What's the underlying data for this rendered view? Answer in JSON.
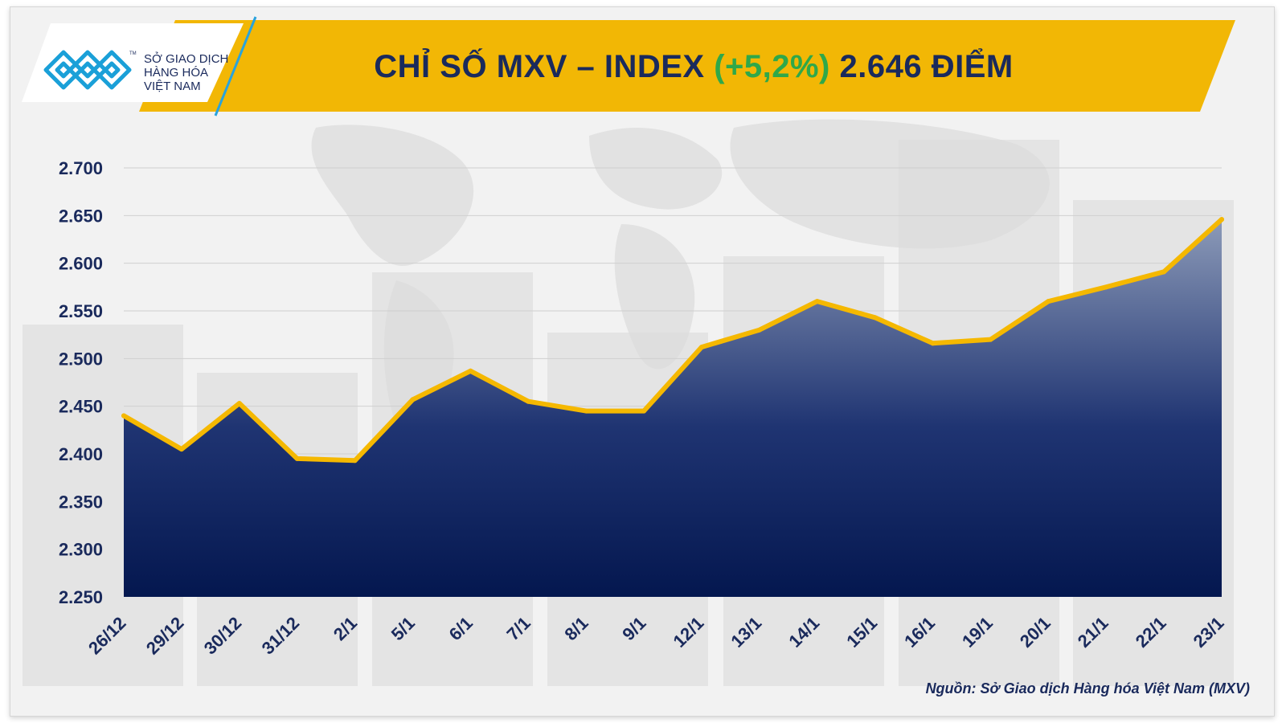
{
  "logo": {
    "line1": "SỞ GIAO DỊCH",
    "line2": "HÀNG HÓA",
    "line3": "VIỆT NAM",
    "tm": "TM",
    "icon": "mxv-logo-icon"
  },
  "header": {
    "title_main": "CHỈ SỐ MXV – INDEX ",
    "title_change": "(+5,2%)",
    "title_value": " 2.646 ĐIỂM"
  },
  "colors": {
    "banner": "#f2b705",
    "title": "#1a2a5c",
    "change": "#2fa84a",
    "line": "#f5b800",
    "area_top": "#8c9ab8",
    "area_bottom": "#04174f",
    "logo_blue": "#1aa0d8"
  },
  "chart_data": {
    "type": "area",
    "title": "CHỈ SỐ MXV – INDEX (+5,2%) 2.646 ĐIỂM",
    "xlabel": "",
    "ylabel": "",
    "categories": [
      "26/12",
      "29/12",
      "30/12",
      "31/12",
      "2/1",
      "5/1",
      "6/1",
      "7/1",
      "8/1",
      "9/1",
      "12/1",
      "13/1",
      "14/1",
      "15/1",
      "16/1",
      "19/1",
      "20/1",
      "21/1",
      "22/1",
      "23/1"
    ],
    "series": [
      {
        "values": [
          2440,
          2405,
          2453,
          2395,
          2393,
          2457,
          2487,
          2455,
          2445,
          2445,
          2512,
          2530,
          2560,
          2543,
          2516,
          2520,
          2560,
          2575,
          2591,
          2646
        ]
      }
    ],
    "ylim": [
      2250,
      2700
    ],
    "yticks": [
      2250,
      2300,
      2350,
      2400,
      2450,
      2500,
      2550,
      2600,
      2650,
      2700
    ],
    "ytick_labels": [
      "2.250",
      "2.300",
      "2.350",
      "2.400",
      "2.450",
      "2.500",
      "2.550",
      "2.600",
      "2.650",
      "2.700"
    ],
    "grid": true,
    "legend": "none"
  },
  "footer": {
    "source": "Nguồn: Sở Giao dịch Hàng hóa Việt Nam (MXV)"
  }
}
